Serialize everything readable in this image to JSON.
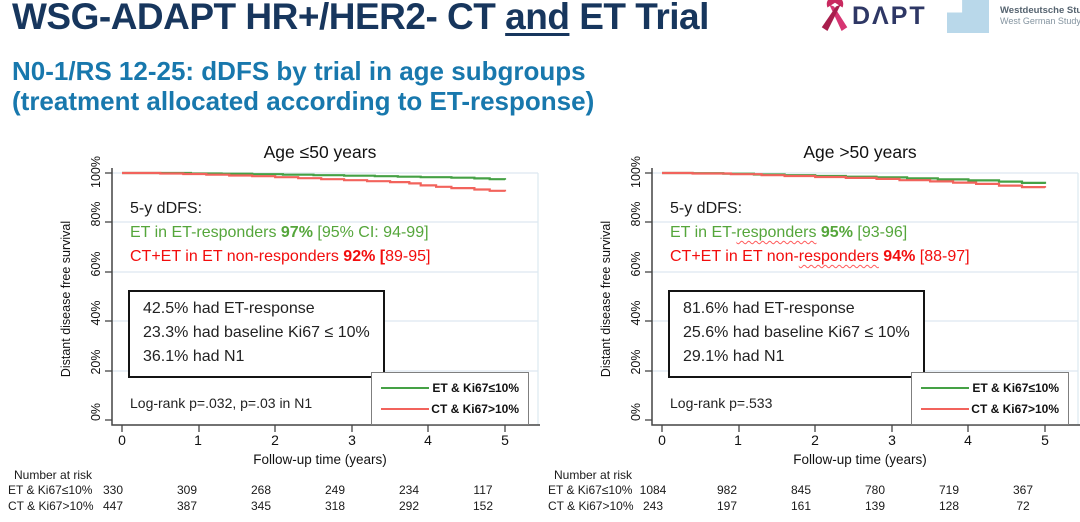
{
  "header": {
    "title": {
      "pre": "WSG-ADAPT HR+/HER2- CT ",
      "underlined": "and",
      "post": " ET Trial"
    },
    "subtitle": {
      "line1": "N0-1/RS 12-25: dDFS by trial in age subgroups",
      "line2": "(treatment allocated according to ET-response)"
    },
    "logos": {
      "adapt": {
        "icon": "pink-ribbon",
        "text": "DΛPT"
      },
      "wsg": {
        "line1": "Westdeutsche Studiengruppe",
        "line2": "West German Study Group"
      }
    }
  },
  "panels": [
    {
      "title": "Age ≤50 years",
      "ylabel": "Distant disease free survival",
      "yticks": [
        "100%",
        "80%",
        "60%",
        "40%",
        "20%",
        "0%"
      ],
      "xticks": [
        "0",
        "1",
        "2",
        "3",
        "4",
        "5"
      ],
      "xlabel": "Follow-up time (years)",
      "summary": {
        "heading": "5-y dDFS:",
        "green": {
          "pre": "ET in ET-responders ",
          "squiggle": "",
          "mid": "",
          "pct": "97%",
          "post": " [95% CI: 94-99]"
        },
        "red": {
          "pre": "CT+ET in ET non-responders ",
          "squiggle": "",
          "mid": "",
          "pct": "92% [",
          "post": "89-95]"
        }
      },
      "stats_box": [
        "42.5% had ET-response",
        "23.3% had baseline Ki67 ≤ 10%",
        "36.1% had N1"
      ],
      "logrank": "Log-rank p=.032, p=.03 in N1",
      "legend": [
        {
          "label": "ET & Ki67≤10%"
        },
        {
          "label": "CT & Ki67>10%"
        }
      ],
      "risk": {
        "heading": "Number at risk",
        "rows": [
          {
            "label": "ET & Ki67≤10%",
            "values": [
              "330",
              "309",
              "268",
              "249",
              "234",
              "117"
            ]
          },
          {
            "label": "CT & Ki67>10%",
            "values": [
              "447",
              "387",
              "345",
              "318",
              "292",
              "152"
            ]
          }
        ]
      }
    },
    {
      "title": "Age >50 years",
      "ylabel": "Distant disease free survival",
      "yticks": [
        "100%",
        "80%",
        "60%",
        "40%",
        "20%",
        "0%"
      ],
      "xticks": [
        "0",
        "1",
        "2",
        "3",
        "4",
        "5"
      ],
      "xlabel": "Follow-up time (years)",
      "summary": {
        "heading": "5-y dDFS:",
        "green": {
          "pre": "ET in ET-",
          "squiggle": "responders",
          "mid": " ",
          "pct": "95%",
          "post": " [93-96]"
        },
        "red": {
          "pre": "CT+ET in ET non-",
          "squiggle": "responders",
          "mid": " ",
          "pct": "94%",
          "post": " [88-97]"
        }
      },
      "stats_box": [
        "81.6% had ET-response",
        "25.6% had baseline Ki67 ≤ 10%",
        "29.1% had N1"
      ],
      "logrank": "Log-rank p=.533",
      "legend": [
        {
          "label": "ET & Ki67≤10%"
        },
        {
          "label": "CT & Ki67>10%"
        }
      ],
      "risk": {
        "heading": "Number at risk",
        "rows": [
          {
            "label": "ET & Ki67≤10%",
            "values": [
              "1084",
              "982",
              "845",
              "780",
              "719",
              "367"
            ]
          },
          {
            "label": "CT & Ki67>10%",
            "values": [
              "243",
              "197",
              "161",
              "139",
              "128",
              "72"
            ]
          }
        ]
      }
    }
  ],
  "chart_data": [
    {
      "type": "line",
      "subtype": "kaplan-meier-step",
      "title": "Age ≤50 years",
      "xlabel": "Follow-up time (years)",
      "ylabel": "Distant disease free survival",
      "xlim": [
        0,
        5.45
      ],
      "ylim_pct": [
        0,
        105
      ],
      "xticks": [
        0,
        1,
        2,
        3,
        4,
        5
      ],
      "yticks_pct": [
        0,
        20,
        40,
        60,
        80,
        100
      ],
      "grid": true,
      "legend_position": "lower-right",
      "series": [
        {
          "name": "ET & Ki67≤10%",
          "color": "#45a145",
          "five_year_estimate_pct": 97,
          "ci_pct": [
            94,
            99
          ],
          "points": [
            [
              0,
              100
            ],
            [
              0.7,
              100
            ],
            [
              0.9,
              99.8
            ],
            [
              1.3,
              99.7
            ],
            [
              1.7,
              99.5
            ],
            [
              2.1,
              99.3
            ],
            [
              2.5,
              99.1
            ],
            [
              2.9,
              98.9
            ],
            [
              3.3,
              98.7
            ],
            [
              3.6,
              98.5
            ],
            [
              3.9,
              98.3
            ],
            [
              4.3,
              98.1
            ],
            [
              4.6,
              97.8
            ],
            [
              4.8,
              97.5
            ],
            [
              5,
              97.3
            ]
          ]
        },
        {
          "name": "CT & Ki67>10%",
          "color": "#f2635c",
          "five_year_estimate_pct": 92,
          "ci_pct": [
            89,
            95
          ],
          "points": [
            [
              0,
              100
            ],
            [
              0.5,
              99.8
            ],
            [
              0.8,
              99.6
            ],
            [
              1.1,
              99.3
            ],
            [
              1.4,
              99.0
            ],
            [
              1.7,
              98.7
            ],
            [
              2.0,
              98.3
            ],
            [
              2.3,
              97.9
            ],
            [
              2.6,
              97.5
            ],
            [
              2.9,
              97.1
            ],
            [
              3.2,
              96.7
            ],
            [
              3.5,
              96.3
            ],
            [
              3.75,
              95.8
            ],
            [
              3.9,
              95.0
            ],
            [
              4.1,
              94.4
            ],
            [
              4.3,
              93.9
            ],
            [
              4.6,
              93.3
            ],
            [
              4.8,
              92.8
            ],
            [
              5,
              92.5
            ]
          ]
        }
      ],
      "at_risk": {
        "times": [
          0,
          1,
          2,
          3,
          4,
          5
        ],
        "ET & Ki67≤10%": [
          330,
          309,
          268,
          249,
          234,
          117
        ],
        "CT & Ki67>10%": [
          447,
          387,
          345,
          318,
          292,
          152
        ]
      },
      "annotations": [
        "5-y dDFS:",
        "ET in ET-responders 97% [95% CI: 94-99]",
        "CT+ET in ET non-responders 92% [89-95]",
        "42.5% had ET-response",
        "23.3% had baseline Ki67 ≤ 10%",
        "36.1% had N1",
        "Log-rank p=.032, p=.03 in N1"
      ]
    },
    {
      "type": "line",
      "subtype": "kaplan-meier-step",
      "title": "Age >50 years",
      "xlabel": "Follow-up time (years)",
      "ylabel": "Distant disease free survival",
      "xlim": [
        0,
        5.45
      ],
      "ylim_pct": [
        0,
        105
      ],
      "xticks": [
        0,
        1,
        2,
        3,
        4,
        5
      ],
      "yticks_pct": [
        0,
        20,
        40,
        60,
        80,
        100
      ],
      "grid": true,
      "legend_position": "lower-right",
      "series": [
        {
          "name": "ET & Ki67≤10%",
          "color": "#45a145",
          "five_year_estimate_pct": 95,
          "ci_pct": [
            93,
            96
          ],
          "points": [
            [
              0,
              100
            ],
            [
              0.4,
              99.9
            ],
            [
              0.8,
              99.7
            ],
            [
              1.2,
              99.4
            ],
            [
              1.6,
              99.1
            ],
            [
              2.0,
              98.8
            ],
            [
              2.4,
              98.5
            ],
            [
              2.8,
              98.2
            ],
            [
              3.2,
              97.8
            ],
            [
              3.6,
              97.4
            ],
            [
              4.0,
              97.0
            ],
            [
              4.4,
              96.5
            ],
            [
              4.7,
              96.0
            ],
            [
              5,
              95.6
            ]
          ]
        },
        {
          "name": "CT & Ki67>10%",
          "color": "#f2635c",
          "five_year_estimate_pct": 94,
          "ci_pct": [
            88,
            97
          ],
          "points": [
            [
              0,
              100
            ],
            [
              0.4,
              99.8
            ],
            [
              0.9,
              99.5
            ],
            [
              1.3,
              99.1
            ],
            [
              1.6,
              98.8
            ],
            [
              2.0,
              98.4
            ],
            [
              2.4,
              98.0
            ],
            [
              2.8,
              97.6
            ],
            [
              3.1,
              97.1
            ],
            [
              3.5,
              96.6
            ],
            [
              3.8,
              96.1
            ],
            [
              4.1,
              95.6
            ],
            [
              4.4,
              94.9
            ],
            [
              4.7,
              94.3
            ],
            [
              5,
              94.0
            ]
          ]
        }
      ],
      "at_risk": {
        "times": [
          0,
          1,
          2,
          3,
          4,
          5
        ],
        "ET & Ki67≤10%": [
          1084,
          982,
          845,
          780,
          719,
          367
        ],
        "CT & Ki67>10%": [
          243,
          197,
          161,
          139,
          128,
          72
        ]
      },
      "annotations": [
        "5-y dDFS:",
        "ET in ET-responders 95% [93-96]",
        "CT+ET in ET non-responders 94% [88-97]",
        "81.6% had ET-response",
        "25.6% had baseline Ki67 ≤ 10%",
        "29.1% had N1",
        "Log-rank p=.533"
      ]
    }
  ],
  "colors": {
    "title_navy": "#17365d",
    "subtitle_blue": "#1878ad",
    "curve_green": "#45a145",
    "curve_red": "#f2635c",
    "annotation_green": "#55a63b",
    "annotation_red": "#f20d0d",
    "gridline": "#dde8f1",
    "wsg_logo_blue": "#b9d8ea",
    "ribbon_pink": "#d63572"
  }
}
